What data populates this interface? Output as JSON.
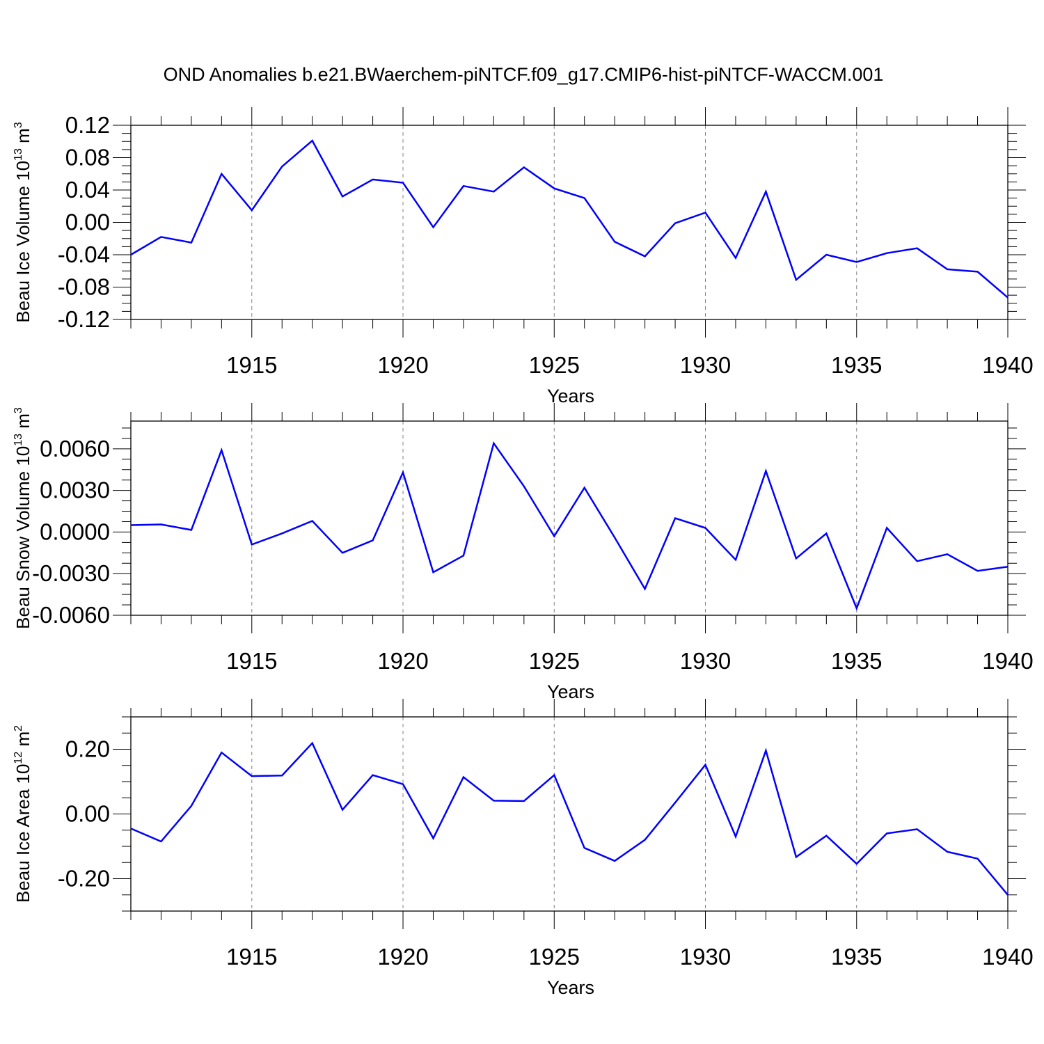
{
  "title": "OND Anomalies b.e21.BWaerchem-piNTCF.f09_g17.CMIP6-hist-piNTCF-WACCM.001",
  "colors": {
    "line": "#0000ff",
    "axis": "#000000",
    "grid": "#808080"
  },
  "chart_data": [
    {
      "type": "line",
      "ylabel": {
        "text": "Beau Ice Volume 10",
        "sup": "13",
        "unit": " m",
        "unit_sup": "3"
      },
      "xlabel": "Years",
      "xlim": [
        1911,
        1940
      ],
      "ylim": [
        -0.12,
        0.12
      ],
      "yticks": [
        "-0.12",
        "-0.08",
        "-0.04",
        "0.00",
        "0.04",
        "0.08",
        "0.12"
      ],
      "xticks": [
        "1915",
        "1920",
        "1925",
        "1930",
        "1935",
        "1940"
      ],
      "grid": "vertical dashed at labeled years",
      "x": [
        1911,
        1912,
        1913,
        1914,
        1915,
        1916,
        1917,
        1918,
        1919,
        1920,
        1921,
        1922,
        1923,
        1924,
        1925,
        1926,
        1927,
        1928,
        1929,
        1930,
        1931,
        1932,
        1933,
        1934,
        1935,
        1936,
        1937,
        1938,
        1939,
        1940
      ],
      "values": [
        -0.04,
        -0.018,
        -0.025,
        0.06,
        0.015,
        0.069,
        0.101,
        0.032,
        0.053,
        0.049,
        -0.006,
        0.045,
        0.038,
        0.068,
        0.042,
        0.03,
        -0.024,
        -0.042,
        -0.001,
        0.012,
        -0.044,
        0.038,
        -0.071,
        -0.04,
        -0.049,
        -0.038,
        -0.032,
        -0.058,
        -0.061,
        -0.093
      ]
    },
    {
      "type": "line",
      "ylabel": {
        "text": "Beau Snow Volume 10",
        "sup": "13",
        "unit": " m",
        "unit_sup": "3"
      },
      "xlabel": "Years",
      "xlim": [
        1911,
        1940
      ],
      "ylim": [
        -0.006,
        0.008
      ],
      "yticks": [
        "-0.0060",
        "-0.0030",
        "0.0000",
        "0.0030",
        "0.0060"
      ],
      "xticks": [
        "1915",
        "1920",
        "1925",
        "1930",
        "1935",
        "1940"
      ],
      "grid": "vertical dashed at labeled years",
      "x": [
        1911,
        1912,
        1913,
        1914,
        1915,
        1916,
        1917,
        1918,
        1919,
        1920,
        1921,
        1922,
        1923,
        1924,
        1925,
        1926,
        1927,
        1928,
        1929,
        1930,
        1931,
        1932,
        1933,
        1934,
        1935,
        1936,
        1937,
        1938,
        1939,
        1940
      ],
      "values": [
        0.0005,
        0.00055,
        0.00015,
        0.0059,
        -0.0009,
        -0.0001,
        0.0008,
        -0.0015,
        -0.0006,
        0.0043,
        -0.0029,
        -0.0017,
        0.0064,
        0.0033,
        -0.0003,
        0.0032,
        -0.0004,
        -0.0041,
        0.001,
        0.0003,
        -0.002,
        0.0044,
        -0.0019,
        -0.0001,
        -0.0055,
        0.0003,
        -0.0021,
        -0.0016,
        -0.0028,
        -0.0025
      ]
    },
    {
      "type": "line",
      "ylabel": {
        "text": "Beau Ice Area 10",
        "sup": "12",
        "unit": " m",
        "unit_sup": "2"
      },
      "xlabel": "Years",
      "xlim": [
        1911,
        1940
      ],
      "ylim": [
        -0.3,
        0.3
      ],
      "yticks": [
        "-0.20",
        "0.00",
        "0.20"
      ],
      "xticks": [
        "1915",
        "1920",
        "1925",
        "1930",
        "1935",
        "1940"
      ],
      "grid": "vertical dashed at labeled years",
      "x": [
        1911,
        1912,
        1913,
        1914,
        1915,
        1916,
        1917,
        1918,
        1919,
        1920,
        1921,
        1922,
        1923,
        1924,
        1925,
        1926,
        1927,
        1928,
        1929,
        1930,
        1931,
        1932,
        1933,
        1934,
        1935,
        1936,
        1937,
        1938,
        1939,
        1940
      ],
      "values": [
        -0.045,
        -0.085,
        0.025,
        0.19,
        0.117,
        0.119,
        0.219,
        0.013,
        0.12,
        0.092,
        -0.075,
        0.114,
        0.041,
        0.04,
        0.12,
        -0.105,
        -0.145,
        -0.08,
        0.035,
        0.152,
        -0.07,
        0.196,
        -0.133,
        -0.067,
        -0.154,
        -0.06,
        -0.047,
        -0.117,
        -0.138,
        -0.25
      ]
    }
  ]
}
